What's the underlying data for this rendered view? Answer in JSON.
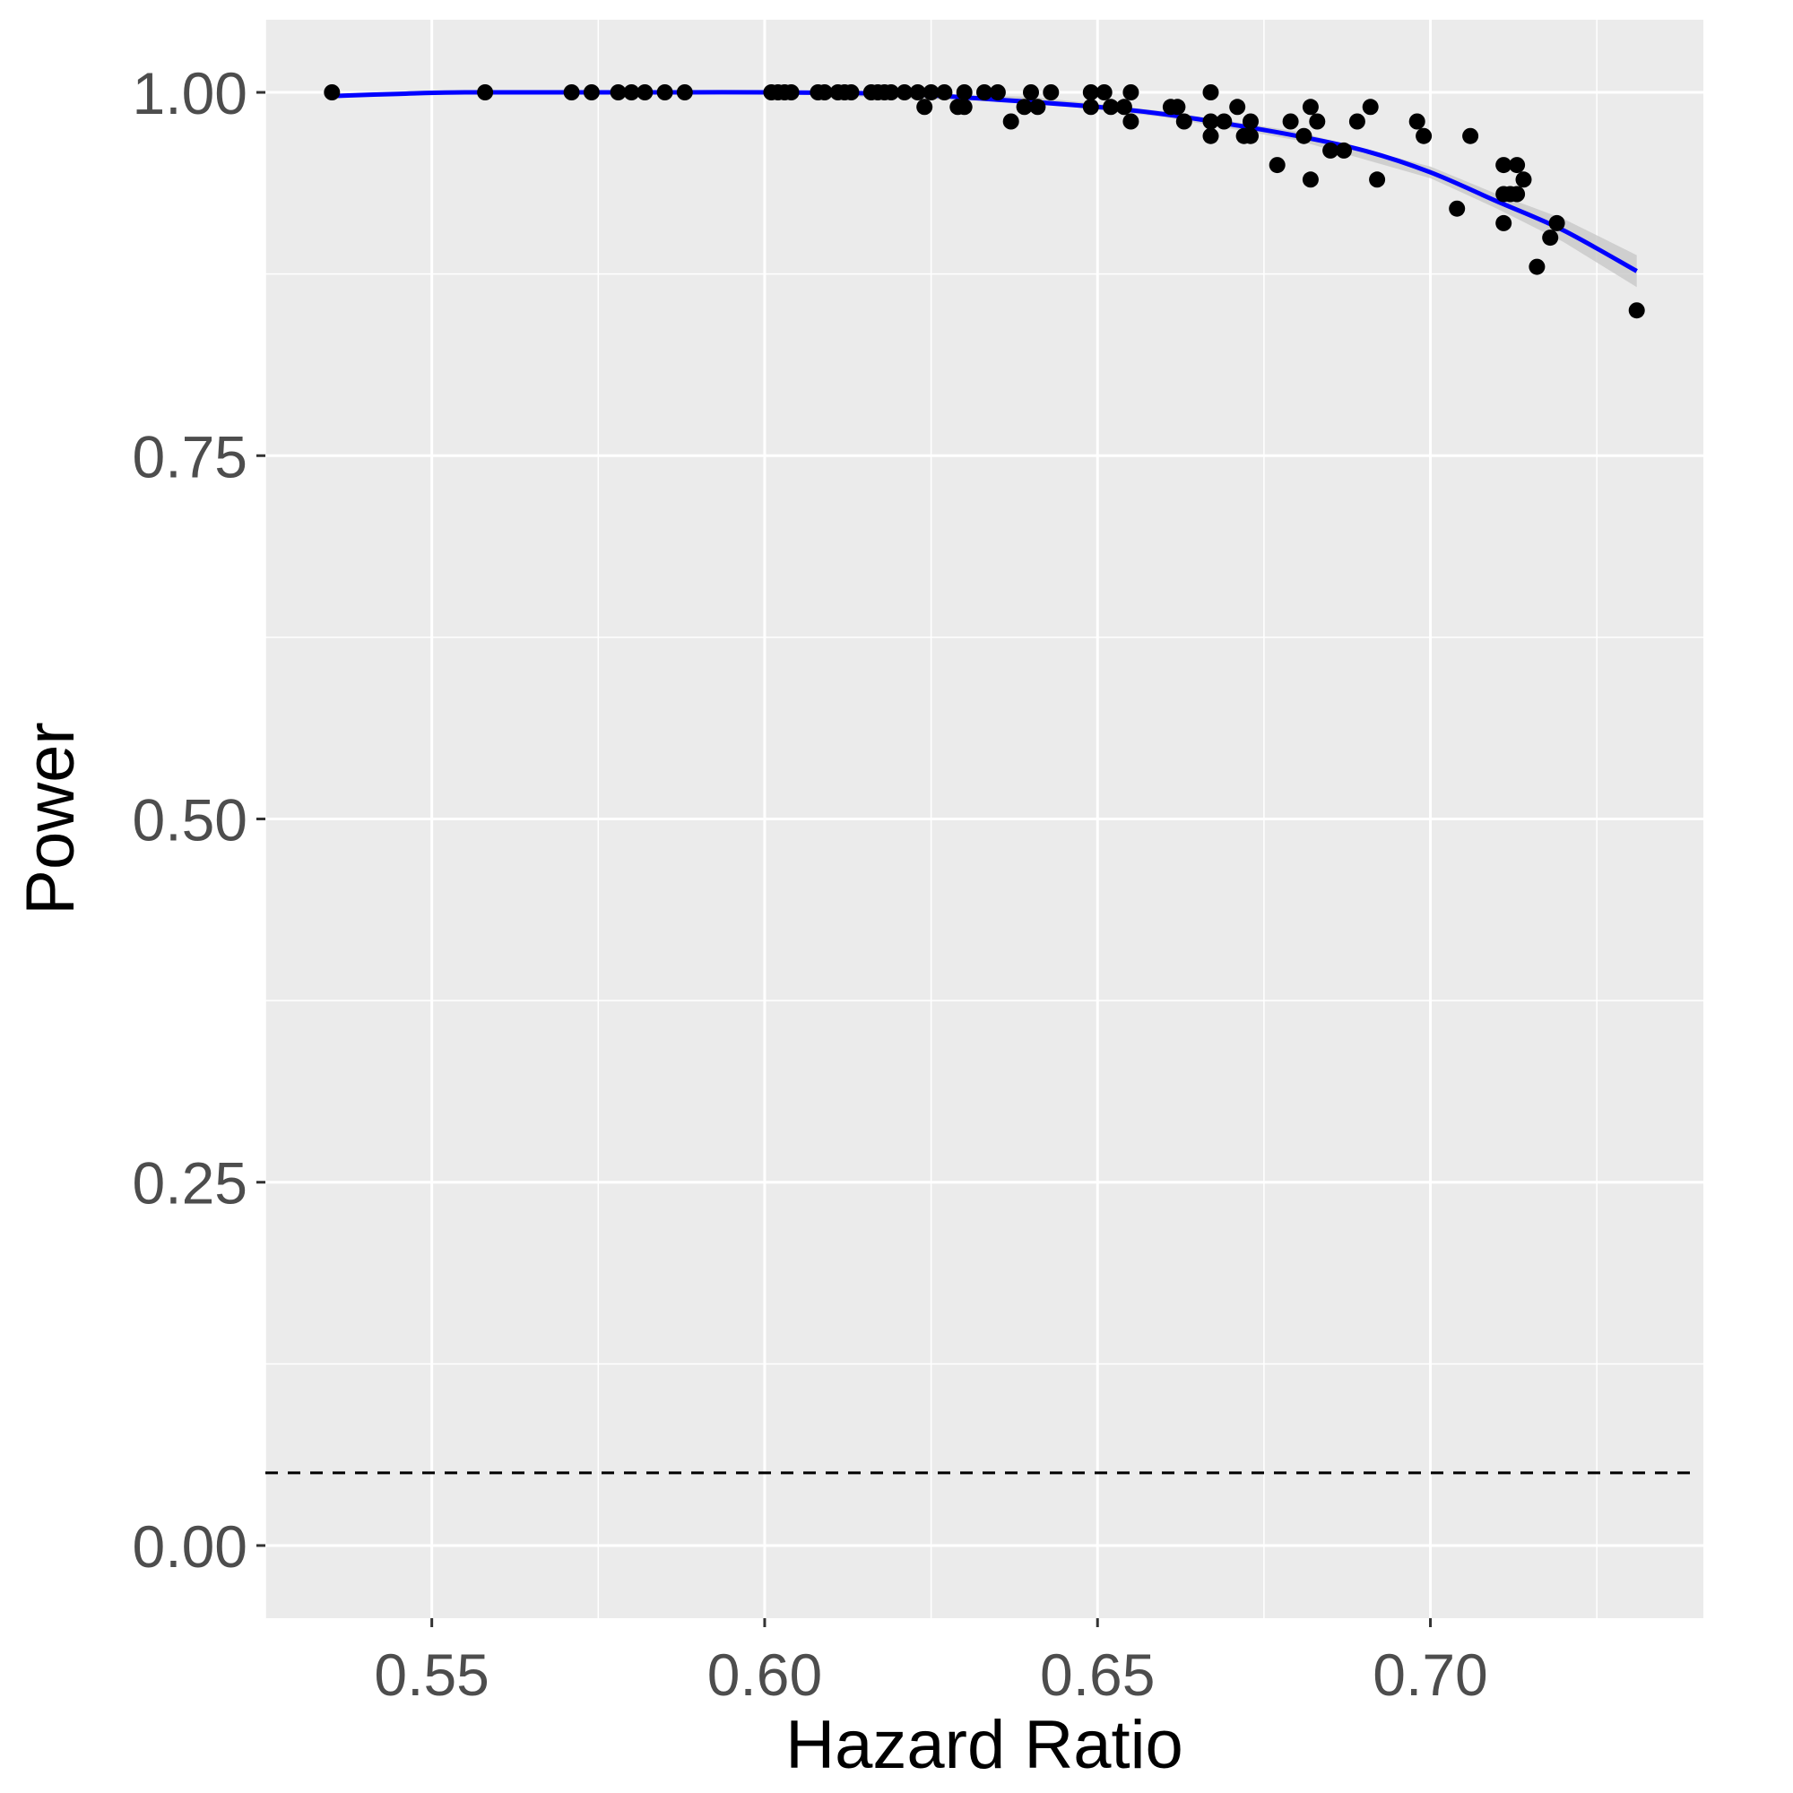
{
  "chart_data": {
    "type": "scatter",
    "title": "",
    "xlabel": "Hazard Ratio",
    "ylabel": "Power",
    "xlim": [
      0.525,
      0.741
    ],
    "ylim": [
      -0.05,
      1.05
    ],
    "x_ticks": [
      0.55,
      0.6,
      0.65,
      0.7
    ],
    "x_tick_labels": [
      "0.55",
      "0.60",
      "0.65",
      "0.70"
    ],
    "y_ticks": [
      0.0,
      0.25,
      0.5,
      0.75,
      1.0
    ],
    "y_tick_labels": [
      "0.00",
      "0.25",
      "0.50",
      "0.75",
      "1.00"
    ],
    "grid": true,
    "legend": "none",
    "colors": {
      "panel_background": "#ebebeb",
      "grid": "#ffffff",
      "points": "#000000",
      "smooth_line": "#0000ff",
      "confidence_band": "#c8c8c8",
      "reference_line": "#000000"
    },
    "reference_line": {
      "y": 0.05,
      "style": "dashed"
    },
    "series": [
      {
        "type": "scatter",
        "points": [
          [
            0.535,
            1.0
          ],
          [
            0.558,
            1.0
          ],
          [
            0.571,
            1.0
          ],
          [
            0.574,
            1.0
          ],
          [
            0.578,
            1.0
          ],
          [
            0.58,
            1.0
          ],
          [
            0.582,
            1.0
          ],
          [
            0.585,
            1.0
          ],
          [
            0.588,
            1.0
          ],
          [
            0.601,
            1.0
          ],
          [
            0.602,
            1.0
          ],
          [
            0.603,
            1.0
          ],
          [
            0.604,
            1.0
          ],
          [
            0.608,
            1.0
          ],
          [
            0.609,
            1.0
          ],
          [
            0.611,
            1.0
          ],
          [
            0.612,
            1.0
          ],
          [
            0.613,
            1.0
          ],
          [
            0.616,
            1.0
          ],
          [
            0.617,
            1.0
          ],
          [
            0.618,
            1.0
          ],
          [
            0.619,
            1.0
          ],
          [
            0.621,
            1.0
          ],
          [
            0.623,
            1.0
          ],
          [
            0.624,
            0.99
          ],
          [
            0.625,
            1.0
          ],
          [
            0.627,
            1.0
          ],
          [
            0.629,
            0.99
          ],
          [
            0.63,
            1.0
          ],
          [
            0.63,
            0.99
          ],
          [
            0.633,
            1.0
          ],
          [
            0.635,
            1.0
          ],
          [
            0.637,
            0.98
          ],
          [
            0.639,
            0.99
          ],
          [
            0.64,
            1.0
          ],
          [
            0.641,
            0.99
          ],
          [
            0.643,
            1.0
          ],
          [
            0.649,
            0.99
          ],
          [
            0.649,
            1.0
          ],
          [
            0.651,
            1.0
          ],
          [
            0.652,
            0.99
          ],
          [
            0.654,
            0.99
          ],
          [
            0.655,
            1.0
          ],
          [
            0.655,
            0.98
          ],
          [
            0.661,
            0.99
          ],
          [
            0.662,
            0.99
          ],
          [
            0.663,
            0.98
          ],
          [
            0.667,
            1.0
          ],
          [
            0.667,
            0.98
          ],
          [
            0.667,
            0.97
          ],
          [
            0.669,
            0.98
          ],
          [
            0.671,
            0.99
          ],
          [
            0.672,
            0.97
          ],
          [
            0.673,
            0.98
          ],
          [
            0.673,
            0.97
          ],
          [
            0.677,
            0.95
          ],
          [
            0.679,
            0.98
          ],
          [
            0.681,
            0.97
          ],
          [
            0.682,
            0.99
          ],
          [
            0.682,
            0.94
          ],
          [
            0.683,
            0.98
          ],
          [
            0.685,
            0.96
          ],
          [
            0.687,
            0.96
          ],
          [
            0.689,
            0.98
          ],
          [
            0.691,
            0.99
          ],
          [
            0.692,
            0.94
          ],
          [
            0.698,
            0.98
          ],
          [
            0.699,
            0.97
          ],
          [
            0.704,
            0.92
          ],
          [
            0.706,
            0.97
          ],
          [
            0.711,
            0.95
          ],
          [
            0.711,
            0.93
          ],
          [
            0.711,
            0.91
          ],
          [
            0.712,
            0.93
          ],
          [
            0.713,
            0.93
          ],
          [
            0.713,
            0.95
          ],
          [
            0.714,
            0.94
          ],
          [
            0.716,
            0.88
          ],
          [
            0.718,
            0.9
          ],
          [
            0.719,
            0.91
          ],
          [
            0.731,
            0.85
          ]
        ]
      },
      {
        "type": "line",
        "style": "smooth",
        "points": [
          [
            0.535,
            0.9975
          ],
          [
            0.545,
            0.999
          ],
          [
            0.555,
            1.0
          ],
          [
            0.58,
            1.0
          ],
          [
            0.6,
            1.0
          ],
          [
            0.62,
            0.999
          ],
          [
            0.635,
            0.995
          ],
          [
            0.65,
            0.99
          ],
          [
            0.66,
            0.985
          ],
          [
            0.67,
            0.978
          ],
          [
            0.68,
            0.97
          ],
          [
            0.69,
            0.96
          ],
          [
            0.7,
            0.945
          ],
          [
            0.71,
            0.925
          ],
          [
            0.72,
            0.905
          ],
          [
            0.731,
            0.877
          ]
        ],
        "band": [
          [
            0.535,
            0.9965,
            0.9985
          ],
          [
            0.56,
            0.9992,
            1.0008
          ],
          [
            0.6,
            0.9992,
            1.0008
          ],
          [
            0.64,
            0.993,
            0.997
          ],
          [
            0.66,
            0.983,
            0.987
          ],
          [
            0.68,
            0.967,
            0.973
          ],
          [
            0.7,
            0.941,
            0.949
          ],
          [
            0.71,
            0.92,
            0.93
          ],
          [
            0.72,
            0.897,
            0.913
          ],
          [
            0.731,
            0.866,
            0.888
          ]
        ]
      }
    ]
  }
}
